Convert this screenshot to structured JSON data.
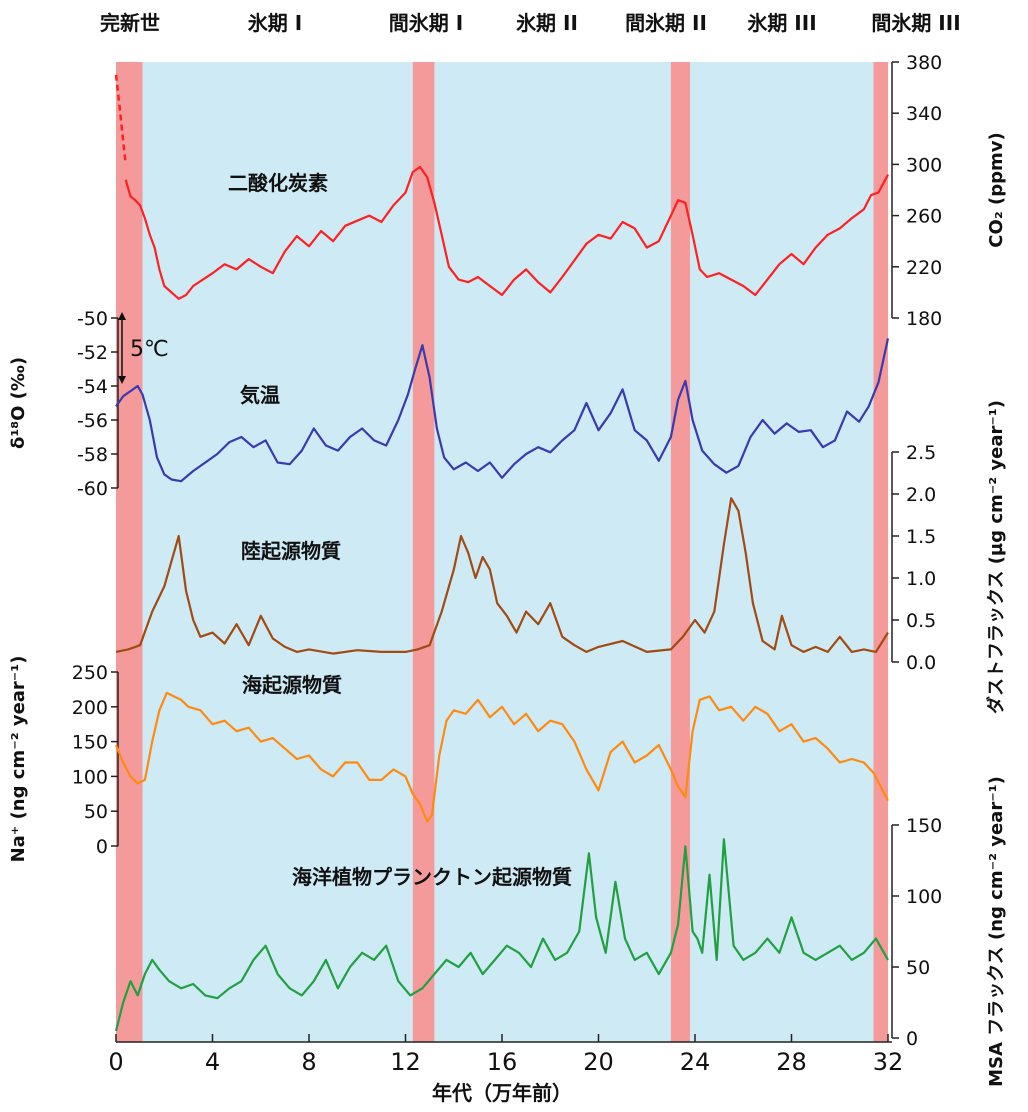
{
  "chart_data": {
    "type": "line",
    "x_unit": "万年前",
    "xlabel": "年代（万年前）",
    "xlim": [
      0,
      32
    ],
    "x_ticks": [
      "0",
      "4",
      "8",
      "12",
      "16",
      "20",
      "24",
      "28",
      "32"
    ],
    "periods": [
      {
        "label": "完新世",
        "kind": "interglacial",
        "start": 0,
        "end": 1.1
      },
      {
        "label": "氷期 I",
        "kind": "glacial",
        "start": 1.1,
        "end": 12.3
      },
      {
        "label": "間氷期 I",
        "kind": "interglacial",
        "start": 12.3,
        "end": 13.2
      },
      {
        "label": "氷期 II",
        "kind": "glacial",
        "start": 13.2,
        "end": 23.0
      },
      {
        "label": "間氷期 II",
        "kind": "interglacial",
        "start": 23.0,
        "end": 23.8
      },
      {
        "label": "氷期 III",
        "kind": "glacial",
        "start": 23.8,
        "end": 31.4
      },
      {
        "label": "間氷期 III",
        "kind": "interglacial",
        "start": 31.4,
        "end": 32.0
      }
    ],
    "colors": {
      "glacial": "#cdeaf5",
      "interglacial": "#f59a9a"
    },
    "series": [
      {
        "name": "二酸化炭素",
        "color": "#ff2020",
        "axis_side": "right",
        "axis_label": "CO₂ (ppmv)",
        "ylim": [
          180,
          380
        ],
        "ticks": [
          "180",
          "220",
          "260",
          "300",
          "340",
          "380"
        ],
        "dashed_segment": [
          [
            0,
            370
          ],
          [
            0.15,
            345
          ],
          [
            0.3,
            318
          ],
          [
            0.4,
            300
          ]
        ],
        "x": [
          0.4,
          0.6,
          0.8,
          1.0,
          1.2,
          1.4,
          1.6,
          1.8,
          2.0,
          2.3,
          2.6,
          2.9,
          3.2,
          3.6,
          4.0,
          4.5,
          5.0,
          5.5,
          6.0,
          6.5,
          7.0,
          7.5,
          8.0,
          8.5,
          9.0,
          9.5,
          10.0,
          10.5,
          11.0,
          11.5,
          12.0,
          12.3,
          12.6,
          12.9,
          13.2,
          13.5,
          13.8,
          14.2,
          14.6,
          15.0,
          15.5,
          16.0,
          16.5,
          17.0,
          17.5,
          18.0,
          18.5,
          19.0,
          19.5,
          20.0,
          20.5,
          21.0,
          21.5,
          22.0,
          22.5,
          23.0,
          23.3,
          23.6,
          23.9,
          24.2,
          24.5,
          25.0,
          25.5,
          26.0,
          26.5,
          27.0,
          27.5,
          28.0,
          28.5,
          29.0,
          29.5,
          30.0,
          30.5,
          31.0,
          31.3,
          31.6,
          32.0
        ],
        "values": [
          288,
          275,
          272,
          268,
          258,
          245,
          235,
          218,
          205,
          200,
          195,
          198,
          205,
          210,
          215,
          222,
          218,
          226,
          220,
          215,
          232,
          244,
          236,
          248,
          240,
          252,
          256,
          260,
          255,
          268,
          278,
          294,
          298,
          290,
          270,
          245,
          220,
          210,
          208,
          212,
          205,
          198,
          210,
          218,
          208,
          200,
          212,
          225,
          238,
          245,
          242,
          255,
          250,
          235,
          240,
          260,
          272,
          270,
          245,
          218,
          212,
          215,
          210,
          205,
          198,
          210,
          222,
          230,
          222,
          235,
          245,
          250,
          258,
          265,
          276,
          278,
          292
        ]
      },
      {
        "name": "気温",
        "color": "#3a3ab0",
        "axis_side": "left",
        "axis_label": "δ¹⁸O (‰)",
        "ylim": [
          -60,
          -50
        ],
        "ticks": [
          "-60",
          "-58",
          "-56",
          "-54",
          "-52",
          "-50"
        ],
        "annotation": "5℃",
        "x": [
          0,
          0.3,
          0.6,
          0.9,
          1.1,
          1.4,
          1.7,
          2.0,
          2.3,
          2.7,
          3.2,
          3.7,
          4.2,
          4.7,
          5.2,
          5.7,
          6.2,
          6.7,
          7.2,
          7.7,
          8.2,
          8.7,
          9.2,
          9.7,
          10.2,
          10.7,
          11.2,
          11.7,
          12.1,
          12.4,
          12.7,
          13.0,
          13.3,
          13.6,
          14.0,
          14.5,
          15.0,
          15.5,
          16.0,
          16.5,
          17.0,
          17.5,
          18.0,
          18.5,
          19.0,
          19.5,
          20.0,
          20.5,
          21.0,
          21.5,
          22.0,
          22.5,
          23.0,
          23.3,
          23.6,
          23.9,
          24.3,
          24.8,
          25.3,
          25.8,
          26.3,
          26.8,
          27.3,
          27.8,
          28.3,
          28.8,
          29.3,
          29.8,
          30.3,
          30.8,
          31.2,
          31.6,
          32.0
        ],
        "values": [
          -55.2,
          -54.6,
          -54.3,
          -54.0,
          -54.5,
          -56.0,
          -58.2,
          -59.2,
          -59.5,
          -59.6,
          -59.0,
          -58.5,
          -58.0,
          -57.3,
          -57.0,
          -57.6,
          -57.2,
          -58.5,
          -58.6,
          -57.8,
          -56.5,
          -57.5,
          -57.8,
          -57.0,
          -56.5,
          -57.2,
          -57.5,
          -56.0,
          -54.5,
          -53.0,
          -51.6,
          -53.5,
          -56.5,
          -58.2,
          -58.9,
          -58.5,
          -59.0,
          -58.5,
          -59.4,
          -58.6,
          -58.0,
          -57.6,
          -57.9,
          -57.2,
          -56.6,
          -55.0,
          -56.6,
          -55.6,
          -54.2,
          -56.6,
          -57.2,
          -58.4,
          -57.0,
          -54.8,
          -53.7,
          -56.0,
          -57.8,
          -58.6,
          -59.1,
          -58.7,
          -57.0,
          -56.0,
          -56.8,
          -56.2,
          -56.7,
          -56.6,
          -57.6,
          -57.2,
          -55.5,
          -56.1,
          -55.2,
          -53.8,
          -51.2
        ]
      },
      {
        "name": "陸起源物質",
        "color": "#a24a12",
        "axis_side": "right",
        "axis_label": "ダストフラックス (µg cm⁻² year⁻¹)",
        "ylim": [
          0,
          2.5
        ],
        "ticks": [
          "0.0",
          "0.5",
          "1.0",
          "1.5",
          "2.0",
          "2.5"
        ],
        "x": [
          0,
          0.5,
          1.0,
          1.5,
          2.0,
          2.3,
          2.6,
          2.9,
          3.2,
          3.5,
          4.0,
          4.5,
          5.0,
          5.5,
          6.0,
          6.5,
          7.0,
          7.5,
          8.0,
          9.0,
          10.0,
          11.0,
          12.0,
          12.5,
          13.0,
          13.5,
          14.0,
          14.3,
          14.6,
          14.9,
          15.2,
          15.5,
          15.8,
          16.2,
          16.6,
          17.0,
          17.5,
          18.0,
          18.5,
          19.0,
          19.5,
          20.0,
          21.0,
          22.0,
          23.0,
          23.5,
          24.0,
          24.4,
          24.8,
          25.2,
          25.5,
          25.8,
          26.1,
          26.4,
          26.8,
          27.3,
          27.6,
          28.0,
          28.5,
          29.0,
          29.5,
          30.0,
          30.5,
          31.0,
          31.5,
          32.0
        ],
        "values": [
          0.12,
          0.15,
          0.2,
          0.6,
          0.9,
          1.2,
          1.5,
          0.85,
          0.5,
          0.3,
          0.35,
          0.22,
          0.45,
          0.2,
          0.55,
          0.28,
          0.18,
          0.12,
          0.15,
          0.1,
          0.14,
          0.12,
          0.12,
          0.15,
          0.2,
          0.6,
          1.1,
          1.5,
          1.3,
          1.0,
          1.25,
          1.1,
          0.7,
          0.55,
          0.35,
          0.6,
          0.45,
          0.7,
          0.3,
          0.2,
          0.12,
          0.18,
          0.25,
          0.12,
          0.15,
          0.3,
          0.5,
          0.35,
          0.6,
          1.4,
          1.95,
          1.8,
          1.3,
          0.7,
          0.25,
          0.15,
          0.55,
          0.2,
          0.12,
          0.18,
          0.12,
          0.3,
          0.12,
          0.15,
          0.12,
          0.35
        ]
      },
      {
        "name": "海起源物質",
        "color": "#ff8a10",
        "axis_side": "left",
        "axis_label": "Na⁺ (ng cm⁻² year⁻¹)",
        "ylim": [
          0,
          250
        ],
        "ticks": [
          "0",
          "50",
          "100",
          "150",
          "200",
          "250"
        ],
        "x": [
          0,
          0.3,
          0.6,
          0.9,
          1.2,
          1.5,
          1.8,
          2.1,
          2.4,
          2.7,
          3.0,
          3.5,
          4.0,
          4.5,
          5.0,
          5.5,
          6.0,
          6.5,
          7.0,
          7.5,
          8.0,
          8.5,
          9.0,
          9.5,
          10.0,
          10.5,
          11.0,
          11.5,
          12.0,
          12.3,
          12.6,
          12.9,
          13.1,
          13.4,
          13.7,
          14.0,
          14.5,
          15.0,
          15.5,
          16.0,
          16.5,
          17.0,
          17.5,
          18.0,
          18.5,
          19.0,
          19.5,
          20.0,
          20.5,
          21.0,
          21.5,
          22.0,
          22.5,
          23.0,
          23.3,
          23.6,
          23.9,
          24.2,
          24.6,
          25.0,
          25.5,
          26.0,
          26.5,
          27.0,
          27.5,
          28.0,
          28.5,
          29.0,
          29.5,
          30.0,
          30.5,
          31.0,
          31.4,
          31.7,
          32.0
        ],
        "values": [
          145,
          120,
          100,
          90,
          95,
          150,
          195,
          220,
          215,
          210,
          200,
          195,
          175,
          180,
          165,
          170,
          150,
          155,
          140,
          125,
          130,
          110,
          100,
          120,
          120,
          95,
          95,
          110,
          100,
          75,
          60,
          35,
          45,
          130,
          180,
          195,
          190,
          210,
          185,
          200,
          175,
          190,
          165,
          180,
          175,
          150,
          110,
          80,
          135,
          150,
          120,
          130,
          145,
          110,
          85,
          70,
          165,
          210,
          215,
          195,
          200,
          180,
          200,
          190,
          165,
          175,
          150,
          155,
          140,
          120,
          125,
          120,
          105,
          85,
          65
        ]
      },
      {
        "name": "海洋植物プランクトン起源物質",
        "color": "#20a040",
        "axis_side": "right",
        "axis_label": "MSA フラックス (ng cm⁻² year⁻¹)",
        "ylim": [
          0,
          150
        ],
        "ticks": [
          "0",
          "50",
          "100",
          "150"
        ],
        "x": [
          0,
          0.3,
          0.6,
          0.9,
          1.2,
          1.5,
          1.8,
          2.2,
          2.7,
          3.2,
          3.7,
          4.2,
          4.7,
          5.2,
          5.7,
          6.2,
          6.7,
          7.2,
          7.7,
          8.2,
          8.7,
          9.2,
          9.7,
          10.2,
          10.7,
          11.2,
          11.7,
          12.2,
          12.7,
          13.2,
          13.7,
          14.2,
          14.7,
          15.2,
          15.7,
          16.2,
          16.7,
          17.2,
          17.7,
          18.2,
          18.7,
          19.2,
          19.6,
          19.9,
          20.3,
          20.7,
          21.1,
          21.5,
          22.0,
          22.5,
          23.0,
          23.3,
          23.6,
          23.9,
          24.1,
          24.3,
          24.6,
          24.9,
          25.2,
          25.6,
          26.0,
          26.5,
          27.0,
          27.5,
          28.0,
          28.5,
          29.0,
          29.5,
          30.0,
          30.5,
          31.0,
          31.5,
          32.0
        ],
        "values": [
          5,
          25,
          40,
          30,
          45,
          55,
          48,
          40,
          35,
          38,
          30,
          28,
          35,
          40,
          55,
          65,
          45,
          35,
          30,
          40,
          55,
          35,
          50,
          60,
          55,
          65,
          40,
          30,
          35,
          45,
          55,
          50,
          60,
          45,
          55,
          65,
          60,
          50,
          70,
          55,
          60,
          75,
          130,
          85,
          60,
          110,
          70,
          55,
          60,
          45,
          60,
          80,
          135,
          75,
          70,
          60,
          115,
          55,
          140,
          65,
          55,
          60,
          70,
          60,
          85,
          60,
          55,
          60,
          65,
          55,
          60,
          70,
          55
        ]
      }
    ]
  }
}
